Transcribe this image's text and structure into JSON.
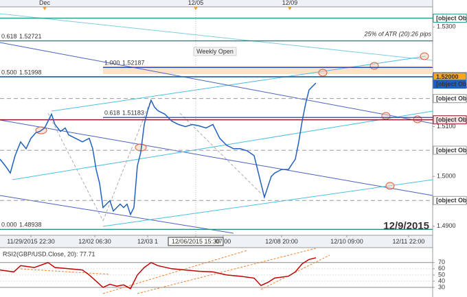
{
  "chart_data": [
    {
      "type": "line",
      "color": "#1f5fbf",
      "x": [
        0,
        0.8,
        1.5,
        2.2,
        3,
        3.8,
        4.5,
        5.2,
        5.8,
        6.5,
        7,
        7.5,
        8,
        8.8,
        9.5,
        10,
        11,
        12,
        13,
        13.5,
        14,
        14.5,
        15,
        15.5,
        16,
        16.5,
        17,
        17.5,
        18,
        18.5,
        19,
        19.5,
        20,
        20.5,
        21,
        21.5,
        22,
        22.5,
        23,
        24,
        25,
        26,
        27,
        28,
        29,
        30,
        31,
        32,
        33,
        34,
        35,
        36,
        37,
        37.5,
        38,
        38.5,
        39,
        39.5,
        40,
        41,
        42,
        43,
        43.5,
        44,
        44.5,
        45,
        45.5,
        46
      ],
      "values": [
        1.50347,
        1.50208,
        1.50069,
        1.50417,
        1.50694,
        1.50556,
        1.50764,
        1.50875,
        1.50903,
        1.50972,
        1.51111,
        1.5125,
        1.51042,
        1.50903,
        1.50972,
        1.50833,
        1.50764,
        1.50694,
        1.50764,
        1.50556,
        1.50139,
        1.49861,
        1.49375,
        1.49444,
        1.49514,
        1.49306,
        1.49375,
        1.49444,
        1.49375,
        1.49444,
        1.49236,
        1.49375,
        1.50208,
        1.50486,
        1.51042,
        1.51319,
        1.51528,
        1.51389,
        1.51319,
        1.5125,
        1.51111,
        1.51042,
        1.51,
        1.51042,
        1.51014,
        1.50972,
        1.51042,
        1.50764,
        1.50625,
        1.50556,
        1.50556,
        1.50514,
        1.50417,
        1.50139,
        1.49861,
        1.49583,
        1.49792,
        1.5,
        1.50069,
        1.50139,
        1.50139,
        1.50347,
        1.50694,
        1.51111,
        1.51458,
        1.51736,
        1.51806,
        1.51875
      ],
      "xlim": [
        0,
        63
      ],
      "ylim": [
        1.48819,
        1.53403
      ],
      "yticks": [
        {
          "value": 1.49,
          "label": "1.4900"
        },
        {
          "value": 1.5,
          "label": "1.5000"
        },
        {
          "value": 1.51,
          "label": "1.5100"
        },
        {
          "value": 1.53,
          "label": "1.5300"
        }
      ],
      "xticks": [
        {
          "value": 4.5,
          "label": "11/29/2015 22:30"
        },
        {
          "value": 13.8,
          "label": "12/02 06:30"
        },
        {
          "value": 21.5,
          "label": "12/03 1"
        },
        {
          "value": 28.5,
          "label": "12/06/2015 15:30"
        },
        {
          "value": 32.5,
          "label": "07:00"
        },
        {
          "value": 41,
          "label": "12/08 20:00"
        },
        {
          "value": 50.5,
          "label": "12/10 09:00"
        },
        {
          "value": 59.5,
          "label": "12/11 22:00"
        }
      ],
      "top_ticks": [
        {
          "value": 6.5,
          "label": "Dec"
        },
        {
          "value": 28.5,
          "label": "12/05"
        },
        {
          "value": 42.2,
          "label": "12/09"
        }
      ],
      "levels": [
        {
          "value": 1.53176,
          "color": "#2a9d8f",
          "dash": "solid",
          "fill": "#ffffff"
        },
        {
          "value": 1.52,
          "label": "1.52000",
          "color": "#1f5fbf",
          "dash": "solid",
          "fill": "#f5a623"
        },
        {
          "value": 1.51851,
          "color": "#1f5fbf",
          "dash": "none",
          "fill": "#1f5fbf"
        },
        {
          "value": 1.51563,
          "color": "#999999",
          "dash": "dashed",
          "fill": "#ffffff"
        },
        {
          "value": 1.51136,
          "color": "#8b1a2b",
          "dash": "solid",
          "fill": "#f6e3e3"
        },
        {
          "value": 1.50525,
          "color": "#999999",
          "dash": "dashed",
          "fill": "#ffffff"
        },
        {
          "value": 1.49517,
          "color": "#999999",
          "dash": "dashed",
          "fill": "#ffffff"
        }
      ],
      "fibs": [
        {
          "ratio": "0.618",
          "value": 1.52721,
          "color": "#1a8a7a"
        },
        {
          "ratio": "0.500",
          "value": 1.51998,
          "color": "#1a8a5a"
        },
        {
          "ratio": "0.000",
          "value": 1.48938,
          "color": "#1a8a7a"
        },
        {
          "ratio": "1.000",
          "value": 1.52187,
          "color": "#2040c0"
        },
        {
          "ratio": "0.618",
          "value": 1.51183,
          "color": "#2040c0"
        }
      ],
      "annotations": [
        "25% of ATR (20):26 pips",
        "Weekly Open"
      ],
      "watermark": "12/9/2015"
    },
    {
      "type": "line",
      "title": "RSI2(GBP/USD.Close, 20): 77.71",
      "color": "#c00000",
      "x": [
        0,
        2,
        3,
        5,
        7,
        8,
        10,
        12,
        13,
        14,
        15,
        16,
        17,
        18,
        19,
        20,
        21,
        22,
        23,
        25,
        27,
        29,
        31,
        33,
        35,
        37,
        38,
        39,
        40,
        42,
        43,
        44,
        45,
        46
      ],
      "values": [
        58,
        55,
        65,
        62,
        70,
        62,
        60,
        58,
        50,
        40,
        30,
        35,
        32,
        34,
        28,
        50,
        62,
        70,
        65,
        60,
        58,
        56,
        55,
        50,
        48,
        45,
        33,
        38,
        45,
        48,
        55,
        68,
        75,
        77.71
      ],
      "ylim": [
        20,
        93
      ],
      "yticks": [
        30,
        40,
        50,
        60,
        70
      ]
    }
  ]
}
